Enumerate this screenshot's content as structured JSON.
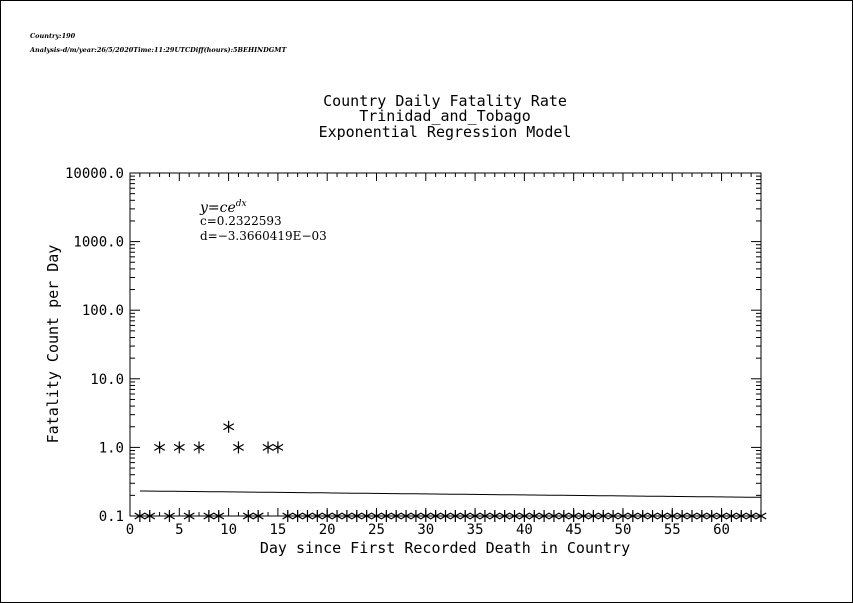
{
  "header": {
    "line1": "Country:190",
    "line2": "Analysis-d/m/year:26/5/2020Time:11:29UTCDiff(hours):5BEHINDGMT"
  },
  "chart_data": {
    "type": "scatter",
    "title": [
      "Country Daily Fatality Rate",
      "Trinidad_and_Tobago",
      "Exponential Regression Model"
    ],
    "xlabel": "Day since First Recorded Death in Country",
    "ylabel": "Fatality Count per Day",
    "xlim": [
      0,
      64
    ],
    "ylim": [
      0.1,
      10000
    ],
    "yscale": "log",
    "xticks": [
      0,
      5,
      10,
      15,
      20,
      25,
      30,
      35,
      40,
      45,
      50,
      55,
      60
    ],
    "xtick_labels": [
      "0",
      "5",
      "10",
      "15",
      "20",
      "25",
      "30",
      "35",
      "40",
      "45",
      "50",
      "55",
      "60"
    ],
    "yticks": [
      0.1,
      1,
      10,
      100,
      1000,
      10000
    ],
    "ytick_labels": [
      "0.1",
      "1.0",
      "10.0",
      "100.0",
      "1000.0",
      "10000.0"
    ],
    "grid": false,
    "points": [
      {
        "x": 3,
        "y": 1
      },
      {
        "x": 5,
        "y": 1
      },
      {
        "x": 7,
        "y": 1
      },
      {
        "x": 10,
        "y": 2
      },
      {
        "x": 11,
        "y": 1
      },
      {
        "x": 14,
        "y": 1
      },
      {
        "x": 15,
        "y": 1
      }
    ],
    "zero_points_x": [
      1,
      2,
      4,
      6,
      8,
      9,
      12,
      13,
      16,
      17,
      18,
      19,
      20,
      21,
      22,
      23,
      24,
      25,
      26,
      27,
      28,
      29,
      30,
      31,
      32,
      33,
      34,
      35,
      36,
      37,
      38,
      39,
      40,
      41,
      42,
      43,
      44,
      45,
      46,
      47,
      48,
      49,
      50,
      51,
      52,
      53,
      54,
      55,
      56,
      57,
      58,
      59,
      60,
      61,
      62,
      63,
      64
    ],
    "model": {
      "c": 0.2322593,
      "d": -0.0033660419,
      "x_range": [
        1,
        64
      ]
    },
    "annotation": {
      "formula": "y=ce",
      "formula_exp": "dx",
      "c_text": "c=0.2322593",
      "d_text": "d=−3.3660419E−03"
    }
  }
}
